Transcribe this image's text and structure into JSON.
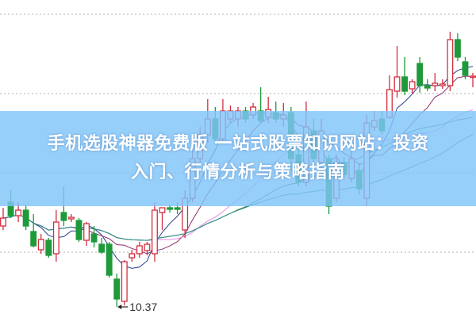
{
  "banner": {
    "title_line1": "手机选股神器免费版 一站式股票知识网站：投资",
    "title_line2": "入门、行情分析与策略指南"
  },
  "chart_data": {
    "type": "candlestick",
    "title": "",
    "xlabel": "",
    "ylabel": "",
    "ylim": [
      10.23,
      14.24
    ],
    "grid": "horizontal-dotted",
    "gridlines": [
      14.06,
      13.06,
      12.06,
      11.06
    ],
    "colors": {
      "up": "#d03040",
      "down": "#1f9a3a",
      "grid": "#b0b0b0"
    },
    "low_annotation": {
      "label": "10.37",
      "candle_index": 15
    },
    "moving_averages": [
      {
        "period": 5,
        "color": "#2b3d8f"
      },
      {
        "period": 10,
        "color": "#8a2f6e"
      },
      {
        "period": 20,
        "color": "#e58ae6"
      },
      {
        "period": 30,
        "color": "#3d7d3a"
      },
      {
        "period": 45,
        "color": "#2b8c8c"
      }
    ],
    "candles_ohlc": [
      [
        11.39,
        11.62,
        11.34,
        11.49
      ],
      [
        11.69,
        11.84,
        11.49,
        11.52
      ],
      [
        11.52,
        11.69,
        11.44,
        11.59
      ],
      [
        11.59,
        11.66,
        11.34,
        11.39
      ],
      [
        11.32,
        11.54,
        11.12,
        11.14
      ],
      [
        11.09,
        11.29,
        11.04,
        11.22
      ],
      [
        11.21,
        11.24,
        10.99,
        11.02
      ],
      [
        11.04,
        11.59,
        10.94,
        11.44
      ],
      [
        11.56,
        11.89,
        11.39,
        11.46
      ],
      [
        11.48,
        11.54,
        11.44,
        11.5
      ],
      [
        11.46,
        11.49,
        11.19,
        11.22
      ],
      [
        11.21,
        11.44,
        11.14,
        11.42
      ],
      [
        11.29,
        11.39,
        11.12,
        11.19
      ],
      [
        11.16,
        11.24,
        11.04,
        11.06
      ],
      [
        11.16,
        11.19,
        10.74,
        10.77
      ],
      [
        10.72,
        10.79,
        10.37,
        10.47
      ],
      [
        10.44,
        10.96,
        10.39,
        10.94
      ],
      [
        10.99,
        11.09,
        10.94,
        11.04
      ],
      [
        11.04,
        11.19,
        10.99,
        11.14
      ],
      [
        11.08,
        11.19,
        11.02,
        11.16
      ],
      [
        11.04,
        11.69,
        10.94,
        11.59
      ],
      [
        11.56,
        11.62,
        11.34,
        11.62
      ],
      [
        11.62,
        11.66,
        11.56,
        11.6
      ],
      [
        11.62,
        11.69,
        11.54,
        11.6
      ],
      [
        11.34,
        11.84,
        11.24,
        11.74
      ],
      [
        11.74,
        12.44,
        11.69,
        12.24
      ],
      [
        12.24,
        12.64,
        12.19,
        12.54
      ],
      [
        12.54,
        12.99,
        12.44,
        12.74
      ],
      [
        12.74,
        12.89,
        12.44,
        12.49
      ],
      [
        12.49,
        12.99,
        12.44,
        12.84
      ],
      [
        12.74,
        12.91,
        12.69,
        12.84
      ],
      [
        12.74,
        12.89,
        12.64,
        12.84
      ],
      [
        12.84,
        12.89,
        12.69,
        12.74
      ],
      [
        12.79,
        12.94,
        12.74,
        12.89
      ],
      [
        12.84,
        13.14,
        12.69,
        12.72
      ],
      [
        12.76,
        13.02,
        12.69,
        12.86
      ],
      [
        12.82,
        12.96,
        12.69,
        12.74
      ],
      [
        12.74,
        12.94,
        12.64,
        12.79
      ],
      [
        12.82,
        12.89,
        12.09,
        12.24
      ],
      [
        12.29,
        12.39,
        11.89,
        11.94
      ],
      [
        11.94,
        12.96,
        11.89,
        12.64
      ],
      [
        12.59,
        12.74,
        12.14,
        12.24
      ],
      [
        12.19,
        12.74,
        12.09,
        12.59
      ],
      [
        12.24,
        12.29,
        11.54,
        11.64
      ],
      [
        11.74,
        12.29,
        11.69,
        12.19
      ],
      [
        12.19,
        12.26,
        11.99,
        12.04
      ],
      [
        11.99,
        12.34,
        11.94,
        12.24
      ],
      [
        12.09,
        12.19,
        11.79,
        11.86
      ],
      [
        11.74,
        12.79,
        11.64,
        12.69
      ],
      [
        12.64,
        12.84,
        12.59,
        12.72
      ],
      [
        12.74,
        12.84,
        12.54,
        12.59
      ],
      [
        12.76,
        13.29,
        12.74,
        13.11
      ],
      [
        13.09,
        13.66,
        13.01,
        13.27
      ],
      [
        13.27,
        13.52,
        13.04,
        13.09
      ],
      [
        13.12,
        13.24,
        13.06,
        13.21
      ],
      [
        13.44,
        13.52,
        13.07,
        13.16
      ],
      [
        13.16,
        13.24,
        13.09,
        13.13
      ],
      [
        13.16,
        13.32,
        13.09,
        13.19
      ],
      [
        13.16,
        13.24,
        13.12,
        13.18
      ],
      [
        13.16,
        13.84,
        13.09,
        13.74
      ],
      [
        13.74,
        13.82,
        13.47,
        13.52
      ],
      [
        13.46,
        13.52,
        13.24,
        13.29
      ],
      [
        13.27,
        13.32,
        13.14,
        13.28
      ]
    ]
  }
}
